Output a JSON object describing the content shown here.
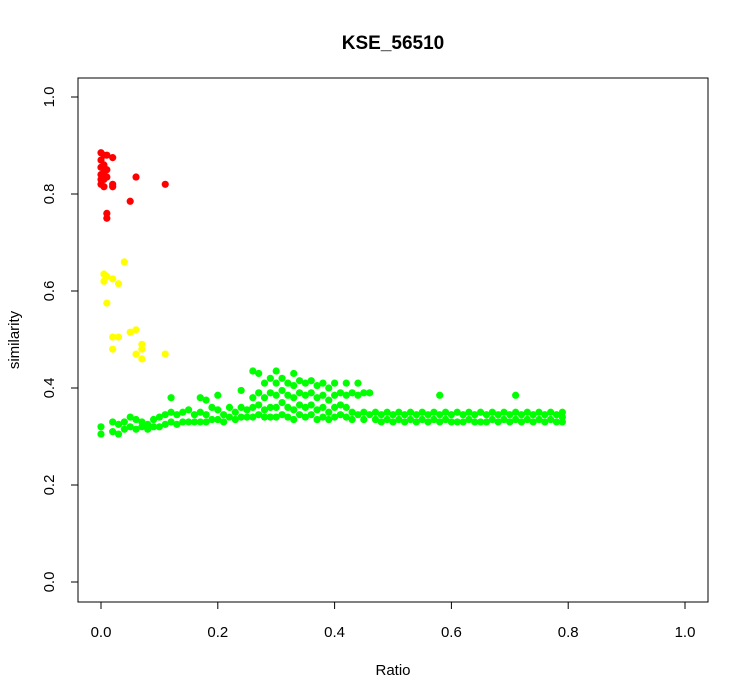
{
  "chart_data": {
    "type": "scatter",
    "title": "KSE_56510",
    "xlabel": "Ratio",
    "ylabel": "similarity",
    "xlim": [
      0.0,
      1.0
    ],
    "ylim": [
      0.0,
      1.0
    ],
    "xticks": [
      "0.0",
      "0.2",
      "0.4",
      "0.6",
      "0.8",
      "1.0"
    ],
    "yticks": [
      "0.0",
      "0.2",
      "0.4",
      "0.6",
      "0.8",
      "1.0"
    ],
    "grid": false,
    "legend": "none",
    "series": [
      {
        "color": "#ff0000",
        "points": [
          [
            0.0,
            0.885
          ],
          [
            0.0,
            0.87
          ],
          [
            0.0,
            0.855
          ],
          [
            0.0,
            0.84
          ],
          [
            0.0,
            0.83
          ],
          [
            0.0,
            0.82
          ],
          [
            0.005,
            0.88
          ],
          [
            0.005,
            0.86
          ],
          [
            0.005,
            0.845
          ],
          [
            0.005,
            0.83
          ],
          [
            0.005,
            0.815
          ],
          [
            0.01,
            0.88
          ],
          [
            0.01,
            0.85
          ],
          [
            0.01,
            0.835
          ],
          [
            0.01,
            0.76
          ],
          [
            0.01,
            0.75
          ],
          [
            0.02,
            0.875
          ],
          [
            0.02,
            0.82
          ],
          [
            0.02,
            0.815
          ],
          [
            0.05,
            0.785
          ],
          [
            0.06,
            0.835
          ],
          [
            0.11,
            0.82
          ]
        ]
      },
      {
        "color": "#ffff00",
        "points": [
          [
            0.005,
            0.635
          ],
          [
            0.005,
            0.62
          ],
          [
            0.01,
            0.63
          ],
          [
            0.01,
            0.575
          ],
          [
            0.02,
            0.625
          ],
          [
            0.03,
            0.615
          ],
          [
            0.04,
            0.66
          ],
          [
            0.02,
            0.505
          ],
          [
            0.02,
            0.48
          ],
          [
            0.03,
            0.505
          ],
          [
            0.05,
            0.515
          ],
          [
            0.06,
            0.52
          ],
          [
            0.06,
            0.47
          ],
          [
            0.07,
            0.49
          ],
          [
            0.07,
            0.48
          ],
          [
            0.07,
            0.46
          ],
          [
            0.11,
            0.47
          ]
        ]
      },
      {
        "color": "#00ff00",
        "points": [
          [
            0.0,
            0.32
          ],
          [
            0.0,
            0.305
          ],
          [
            0.02,
            0.33
          ],
          [
            0.02,
            0.31
          ],
          [
            0.03,
            0.325
          ],
          [
            0.03,
            0.305
          ],
          [
            0.04,
            0.33
          ],
          [
            0.04,
            0.315
          ],
          [
            0.05,
            0.34
          ],
          [
            0.05,
            0.32
          ],
          [
            0.06,
            0.335
          ],
          [
            0.06,
            0.315
          ],
          [
            0.07,
            0.33
          ],
          [
            0.07,
            0.32
          ],
          [
            0.08,
            0.325
          ],
          [
            0.08,
            0.315
          ],
          [
            0.09,
            0.335
          ],
          [
            0.09,
            0.32
          ],
          [
            0.1,
            0.34
          ],
          [
            0.1,
            0.32
          ],
          [
            0.11,
            0.345
          ],
          [
            0.11,
            0.325
          ],
          [
            0.12,
            0.38
          ],
          [
            0.12,
            0.35
          ],
          [
            0.12,
            0.33
          ],
          [
            0.13,
            0.345
          ],
          [
            0.13,
            0.325
          ],
          [
            0.14,
            0.35
          ],
          [
            0.14,
            0.33
          ],
          [
            0.15,
            0.355
          ],
          [
            0.15,
            0.33
          ],
          [
            0.16,
            0.345
          ],
          [
            0.16,
            0.33
          ],
          [
            0.17,
            0.38
          ],
          [
            0.17,
            0.35
          ],
          [
            0.17,
            0.33
          ],
          [
            0.18,
            0.375
          ],
          [
            0.18,
            0.345
          ],
          [
            0.18,
            0.33
          ],
          [
            0.19,
            0.36
          ],
          [
            0.19,
            0.335
          ],
          [
            0.2,
            0.385
          ],
          [
            0.2,
            0.355
          ],
          [
            0.2,
            0.335
          ],
          [
            0.21,
            0.345
          ],
          [
            0.21,
            0.33
          ],
          [
            0.22,
            0.36
          ],
          [
            0.22,
            0.34
          ],
          [
            0.23,
            0.35
          ],
          [
            0.23,
            0.335
          ],
          [
            0.24,
            0.395
          ],
          [
            0.24,
            0.36
          ],
          [
            0.24,
            0.34
          ],
          [
            0.25,
            0.355
          ],
          [
            0.25,
            0.34
          ],
          [
            0.26,
            0.435
          ],
          [
            0.26,
            0.38
          ],
          [
            0.26,
            0.36
          ],
          [
            0.26,
            0.34
          ],
          [
            0.27,
            0.43
          ],
          [
            0.27,
            0.39
          ],
          [
            0.27,
            0.365
          ],
          [
            0.27,
            0.345
          ],
          [
            0.28,
            0.41
          ],
          [
            0.28,
            0.38
          ],
          [
            0.28,
            0.355
          ],
          [
            0.28,
            0.34
          ],
          [
            0.29,
            0.42
          ],
          [
            0.29,
            0.39
          ],
          [
            0.29,
            0.36
          ],
          [
            0.29,
            0.34
          ],
          [
            0.3,
            0.435
          ],
          [
            0.3,
            0.41
          ],
          [
            0.3,
            0.385
          ],
          [
            0.3,
            0.36
          ],
          [
            0.3,
            0.34
          ],
          [
            0.31,
            0.42
          ],
          [
            0.31,
            0.395
          ],
          [
            0.31,
            0.37
          ],
          [
            0.31,
            0.345
          ],
          [
            0.32,
            0.41
          ],
          [
            0.32,
            0.385
          ],
          [
            0.32,
            0.36
          ],
          [
            0.32,
            0.34
          ],
          [
            0.33,
            0.43
          ],
          [
            0.33,
            0.405
          ],
          [
            0.33,
            0.38
          ],
          [
            0.33,
            0.355
          ],
          [
            0.33,
            0.335
          ],
          [
            0.34,
            0.415
          ],
          [
            0.34,
            0.39
          ],
          [
            0.34,
            0.365
          ],
          [
            0.34,
            0.345
          ],
          [
            0.35,
            0.41
          ],
          [
            0.35,
            0.385
          ],
          [
            0.35,
            0.36
          ],
          [
            0.35,
            0.34
          ],
          [
            0.36,
            0.415
          ],
          [
            0.36,
            0.39
          ],
          [
            0.36,
            0.365
          ],
          [
            0.36,
            0.345
          ],
          [
            0.37,
            0.405
          ],
          [
            0.37,
            0.38
          ],
          [
            0.37,
            0.355
          ],
          [
            0.37,
            0.335
          ],
          [
            0.38,
            0.41
          ],
          [
            0.38,
            0.385
          ],
          [
            0.38,
            0.36
          ],
          [
            0.38,
            0.34
          ],
          [
            0.39,
            0.4
          ],
          [
            0.39,
            0.375
          ],
          [
            0.39,
            0.35
          ],
          [
            0.39,
            0.335
          ],
          [
            0.4,
            0.41
          ],
          [
            0.4,
            0.385
          ],
          [
            0.4,
            0.36
          ],
          [
            0.4,
            0.34
          ],
          [
            0.41,
            0.39
          ],
          [
            0.41,
            0.365
          ],
          [
            0.41,
            0.345
          ],
          [
            0.42,
            0.41
          ],
          [
            0.42,
            0.385
          ],
          [
            0.42,
            0.36
          ],
          [
            0.42,
            0.34
          ],
          [
            0.43,
            0.39
          ],
          [
            0.43,
            0.35
          ],
          [
            0.43,
            0.335
          ],
          [
            0.44,
            0.41
          ],
          [
            0.44,
            0.385
          ],
          [
            0.44,
            0.345
          ],
          [
            0.45,
            0.39
          ],
          [
            0.45,
            0.35
          ],
          [
            0.45,
            0.335
          ],
          [
            0.46,
            0.39
          ],
          [
            0.46,
            0.345
          ],
          [
            0.47,
            0.35
          ],
          [
            0.47,
            0.335
          ],
          [
            0.48,
            0.345
          ],
          [
            0.48,
            0.33
          ],
          [
            0.49,
            0.35
          ],
          [
            0.49,
            0.335
          ],
          [
            0.5,
            0.345
          ],
          [
            0.5,
            0.33
          ],
          [
            0.51,
            0.35
          ],
          [
            0.51,
            0.335
          ],
          [
            0.52,
            0.345
          ],
          [
            0.52,
            0.33
          ],
          [
            0.53,
            0.35
          ],
          [
            0.53,
            0.335
          ],
          [
            0.54,
            0.345
          ],
          [
            0.54,
            0.33
          ],
          [
            0.55,
            0.35
          ],
          [
            0.55,
            0.335
          ],
          [
            0.56,
            0.345
          ],
          [
            0.56,
            0.33
          ],
          [
            0.57,
            0.35
          ],
          [
            0.57,
            0.335
          ],
          [
            0.58,
            0.345
          ],
          [
            0.58,
            0.33
          ],
          [
            0.59,
            0.35
          ],
          [
            0.59,
            0.335
          ],
          [
            0.6,
            0.345
          ],
          [
            0.6,
            0.33
          ],
          [
            0.58,
            0.385
          ],
          [
            0.61,
            0.35
          ],
          [
            0.61,
            0.33
          ],
          [
            0.62,
            0.345
          ],
          [
            0.62,
            0.33
          ],
          [
            0.63,
            0.35
          ],
          [
            0.63,
            0.335
          ],
          [
            0.64,
            0.345
          ],
          [
            0.64,
            0.33
          ],
          [
            0.65,
            0.35
          ],
          [
            0.65,
            0.33
          ],
          [
            0.66,
            0.345
          ],
          [
            0.66,
            0.33
          ],
          [
            0.67,
            0.35
          ],
          [
            0.67,
            0.335
          ],
          [
            0.68,
            0.345
          ],
          [
            0.68,
            0.33
          ],
          [
            0.69,
            0.35
          ],
          [
            0.69,
            0.335
          ],
          [
            0.7,
            0.345
          ],
          [
            0.7,
            0.33
          ],
          [
            0.71,
            0.385
          ],
          [
            0.71,
            0.35
          ],
          [
            0.71,
            0.335
          ],
          [
            0.72,
            0.345
          ],
          [
            0.72,
            0.33
          ],
          [
            0.73,
            0.35
          ],
          [
            0.73,
            0.335
          ],
          [
            0.74,
            0.345
          ],
          [
            0.74,
            0.33
          ],
          [
            0.75,
            0.35
          ],
          [
            0.75,
            0.335
          ],
          [
            0.76,
            0.345
          ],
          [
            0.76,
            0.33
          ],
          [
            0.77,
            0.35
          ],
          [
            0.77,
            0.335
          ],
          [
            0.78,
            0.345
          ],
          [
            0.78,
            0.33
          ],
          [
            0.79,
            0.35
          ],
          [
            0.79,
            0.34
          ],
          [
            0.79,
            0.33
          ]
        ]
      }
    ]
  }
}
